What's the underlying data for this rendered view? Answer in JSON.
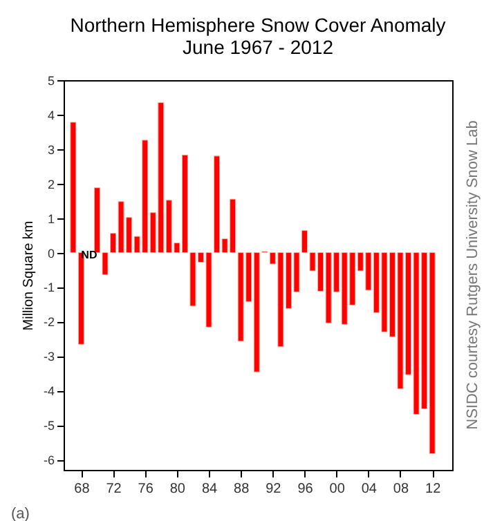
{
  "chart_data": {
    "type": "bar",
    "title": "Northern Hemisphere Snow Cover Anomaly",
    "subtitle": "June 1967 - 2012",
    "ylabel": "Million Square km",
    "x": [
      1967,
      1968,
      1969,
      1970,
      1971,
      1972,
      1973,
      1974,
      1975,
      1976,
      1977,
      1978,
      1979,
      1980,
      1981,
      1982,
      1983,
      1984,
      1985,
      1986,
      1987,
      1988,
      1989,
      1990,
      1991,
      1992,
      1993,
      1994,
      1995,
      1996,
      1997,
      1998,
      1999,
      2000,
      2001,
      2002,
      2003,
      2004,
      2005,
      2006,
      2007,
      2008,
      2009,
      2010,
      2011,
      2012
    ],
    "values": [
      3.78,
      -2.66,
      null,
      1.88,
      -0.64,
      0.56,
      1.48,
      1.02,
      0.47,
      3.26,
      1.16,
      4.35,
      1.52,
      0.28,
      2.83,
      -1.55,
      -0.28,
      -2.16,
      2.8,
      0.4,
      1.55,
      -2.57,
      -1.42,
      -3.46,
      0.03,
      -0.33,
      -2.73,
      -1.62,
      -1.14,
      0.64,
      -0.53,
      -1.12,
      -2.04,
      -1.14,
      -2.08,
      -1.52,
      -0.53,
      -1.09,
      -1.74,
      -2.3,
      -2.44,
      -3.95,
      -3.54,
      -4.69,
      -4.53,
      -5.83
    ],
    "color": "#ff0000",
    "xlim": [
      1965.8,
      2014.5
    ],
    "xticks": [
      {
        "value": 1968,
        "label": "68"
      },
      {
        "value": 1972,
        "label": "72"
      },
      {
        "value": 1976,
        "label": "76"
      },
      {
        "value": 1980,
        "label": "80"
      },
      {
        "value": 1984,
        "label": "84"
      },
      {
        "value": 1988,
        "label": "88"
      },
      {
        "value": 1992,
        "label": "92"
      },
      {
        "value": 1996,
        "label": "96"
      },
      {
        "value": 2000,
        "label": "00"
      },
      {
        "value": 2004,
        "label": "04"
      },
      {
        "value": 2008,
        "label": "08"
      },
      {
        "value": 2012,
        "label": "12"
      }
    ],
    "ylim": [
      -6.3,
      5
    ],
    "yticks": [
      -6,
      -5,
      -4,
      -3,
      -2,
      -1,
      0,
      1,
      2,
      3,
      4,
      5
    ],
    "grid": false,
    "annotations": [
      {
        "text": "ND",
        "x": 1969,
        "y": 0
      },
      "NSIDC courtesy Rutgers University Snow Lab",
      "(a)"
    ]
  }
}
